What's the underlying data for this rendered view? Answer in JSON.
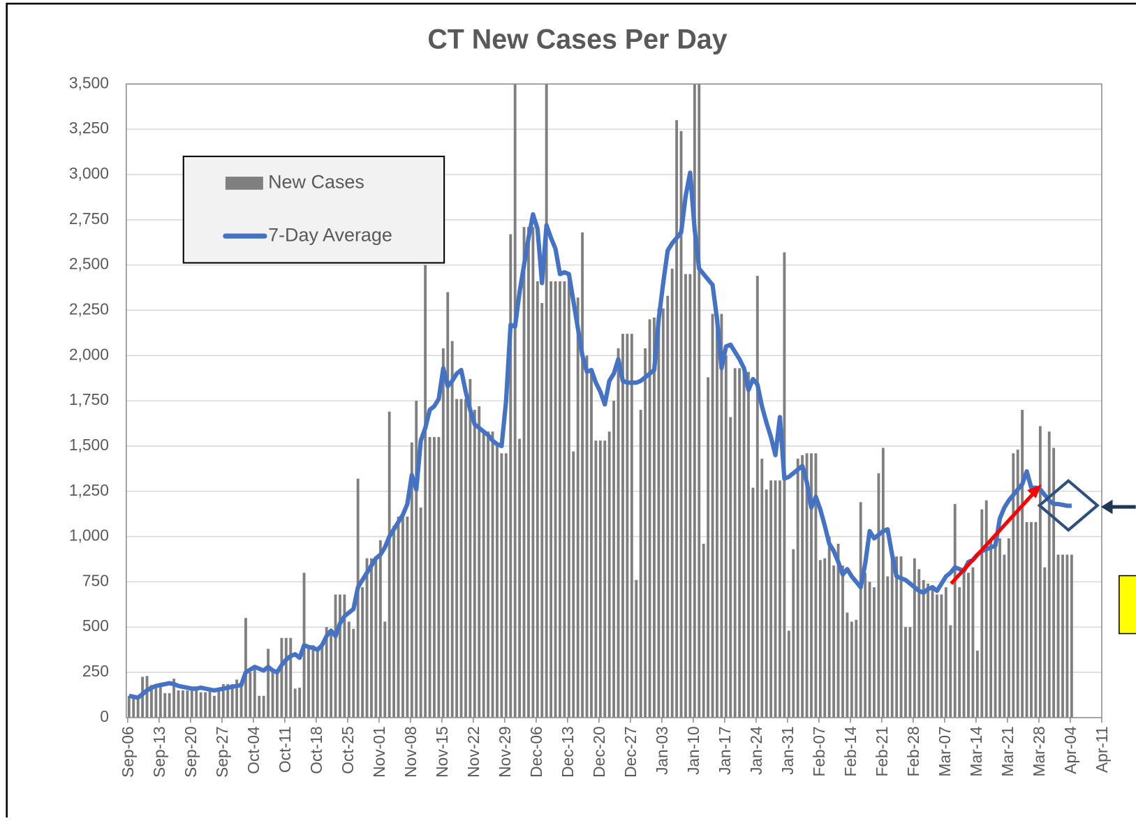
{
  "chart_data": {
    "type": "bar_line",
    "title": "CT New Cases Per Day",
    "categories": [
      "Sep-06",
      null,
      null,
      null,
      null,
      null,
      null,
      "Sep-13",
      null,
      null,
      null,
      null,
      null,
      null,
      "Sep-20",
      null,
      null,
      null,
      null,
      null,
      null,
      "Sep-27",
      null,
      null,
      null,
      null,
      null,
      null,
      "Oct-04",
      null,
      null,
      null,
      null,
      null,
      null,
      "Oct-11",
      null,
      null,
      null,
      null,
      null,
      null,
      "Oct-18",
      null,
      null,
      null,
      null,
      null,
      null,
      "Oct-25",
      null,
      null,
      null,
      null,
      null,
      null,
      "Nov-01",
      null,
      null,
      null,
      null,
      null,
      null,
      "Nov-08",
      null,
      null,
      null,
      null,
      null,
      null,
      "Nov-15",
      null,
      null,
      null,
      null,
      null,
      null,
      "Nov-22",
      null,
      null,
      null,
      null,
      null,
      null,
      "Nov-29",
      null,
      null,
      null,
      null,
      null,
      null,
      "Dec-06",
      null,
      null,
      null,
      null,
      null,
      null,
      "Dec-13",
      null,
      null,
      null,
      null,
      null,
      null,
      "Dec-20",
      null,
      null,
      null,
      null,
      null,
      null,
      "Dec-27",
      null,
      null,
      null,
      null,
      null,
      null,
      "Jan-03",
      null,
      null,
      null,
      null,
      null,
      null,
      "Jan-10",
      null,
      null,
      null,
      null,
      null,
      null,
      "Jan-17",
      null,
      null,
      null,
      null,
      null,
      null,
      "Jan-24",
      null,
      null,
      null,
      null,
      null,
      null,
      "Jan-31",
      null,
      null,
      null,
      null,
      null,
      null,
      "Feb-07",
      null,
      null,
      null,
      null,
      null,
      null,
      "Feb-14",
      null,
      null,
      null,
      null,
      null,
      null,
      "Feb-21",
      null,
      null,
      null,
      null,
      null,
      null,
      "Feb-28",
      null,
      null,
      null,
      null,
      null,
      null,
      "Mar-07",
      null,
      null,
      null,
      null,
      null,
      null,
      "Mar-14",
      null,
      null,
      null,
      null,
      null,
      null,
      "Mar-21",
      null,
      null,
      null,
      null,
      null,
      null,
      "Mar-28",
      null,
      null,
      null,
      null,
      null,
      null,
      "Apr-04",
      null,
      null,
      null,
      null,
      null,
      null,
      "Apr-11"
    ],
    "series": [
      {
        "name": "New Cases",
        "type": "bar",
        "color": "#7f7f7f",
        "values": [
          120,
          110,
          100,
          225,
          230,
          180,
          180,
          180,
          135,
          135,
          215,
          150,
          150,
          150,
          150,
          150,
          140,
          140,
          150,
          120,
          150,
          185,
          185,
          185,
          210,
          170,
          550,
          250,
          270,
          120,
          120,
          380,
          260,
          260,
          440,
          440,
          440,
          160,
          165,
          800,
          400,
          400,
          380,
          410,
          500,
          460,
          680,
          680,
          680,
          530,
          490,
          1320,
          720,
          880,
          880,
          880,
          980,
          530,
          1690,
          1060,
          1110,
          1110,
          1110,
          1520,
          1750,
          1160,
          2500,
          1550,
          1550,
          1550,
          2040,
          2350,
          2080,
          1760,
          1760,
          1760,
          1870,
          1700,
          1720,
          1580,
          1580,
          1580,
          1500,
          1460,
          1460,
          2670,
          3500,
          1540,
          2710,
          2710,
          2710,
          2410,
          2290,
          3500,
          2410,
          2410,
          2410,
          2410,
          2410,
          1470,
          2320,
          2680,
          2000,
          1900,
          1530,
          1530,
          1530,
          1580,
          1750,
          2040,
          2120,
          2120,
          2120,
          760,
          1700,
          2040,
          2200,
          2210,
          2260,
          2260,
          2330,
          2480,
          3300,
          3240,
          2450,
          2450,
          3500,
          3500,
          960,
          1880,
          2230,
          2230,
          2230,
          2000,
          1660,
          1930,
          1930,
          1940,
          1910,
          1270,
          2440,
          1430,
          1260,
          1310,
          1310,
          1310,
          2570,
          480,
          930,
          1430,
          1450,
          1460,
          1460,
          1460,
          870,
          880,
          1000,
          840,
          960,
          840,
          580,
          530,
          540,
          1190,
          800,
          750,
          720,
          1350,
          1490,
          780,
          890,
          890,
          890,
          500,
          500,
          880,
          820,
          760,
          740,
          730,
          680,
          680,
          720,
          510,
          1180,
          720,
          830,
          800,
          830,
          370,
          1150,
          1200,
          990,
          990,
          990,
          900,
          990,
          1460,
          1480,
          1700,
          1080,
          1080,
          1080,
          1610,
          830,
          1580,
          1490,
          900,
          900,
          900,
          900,
          null,
          null,
          null,
          null,
          null,
          null,
          null
        ]
      },
      {
        "name": "7-Day Average",
        "type": "line",
        "color": "#4472c4",
        "values": [
          120,
          115,
          110,
          130,
          150,
          165,
          175,
          180,
          185,
          190,
          185,
          175,
          170,
          165,
          160,
          160,
          165,
          160,
          155,
          150,
          155,
          160,
          165,
          170,
          175,
          180,
          250,
          265,
          280,
          270,
          260,
          280,
          260,
          250,
          290,
          320,
          340,
          350,
          330,
          400,
          390,
          385,
          375,
          400,
          450,
          480,
          450,
          520,
          560,
          580,
          600,
          720,
          760,
          800,
          840,
          880,
          900,
          940,
          1000,
          1040,
          1080,
          1120,
          1180,
          1340,
          1260,
          1530,
          1600,
          1700,
          1720,
          1760,
          1930,
          1830,
          1860,
          1900,
          1920,
          1800,
          1700,
          1620,
          1600,
          1580,
          1560,
          1530,
          1510,
          1500,
          1750,
          2170,
          2160,
          2350,
          2500,
          2650,
          2780,
          2700,
          2400,
          2720,
          2650,
          2590,
          2450,
          2460,
          2450,
          2300,
          2150,
          2000,
          1910,
          1920,
          1850,
          1800,
          1730,
          1860,
          1900,
          1980,
          1860,
          1850,
          1850,
          1850,
          1860,
          1880,
          1900,
          1920,
          2200,
          2400,
          2580,
          2620,
          2650,
          2680,
          2880,
          3010,
          2700,
          2480,
          2450,
          2420,
          2390,
          2200,
          1930,
          2050,
          2060,
          2020,
          1980,
          1930,
          1810,
          1870,
          1840,
          1720,
          1630,
          1550,
          1450,
          1660,
          1320,
          1330,
          1350,
          1370,
          1390,
          1300,
          1160,
          1220,
          1150,
          1060,
          960,
          920,
          860,
          790,
          820,
          780,
          750,
          720,
          850,
          1030,
          990,
          1010,
          1030,
          1040,
          900,
          780,
          770,
          760,
          740,
          720,
          700,
          690,
          710,
          720,
          700,
          740,
          780,
          800,
          830,
          820,
          810,
          860,
          870,
          900,
          920,
          930,
          940,
          950,
          1100,
          1160,
          1200,
          1230,
          1260,
          1290,
          1360,
          1270,
          1270,
          1260,
          1230,
          1200,
          1180,
          1180,
          1175,
          1170,
          1170,
          null,
          null,
          null,
          null,
          null,
          null,
          null
        ]
      }
    ],
    "ylim": [
      0,
      3500
    ],
    "yticks": [
      0,
      250,
      500,
      750,
      {
        "value": 1000,
        "label": "1,000"
      },
      {
        "value": 1250,
        "label": "1,250"
      },
      {
        "value": 1500,
        "label": "1,500"
      },
      {
        "value": 1750,
        "label": "1,750"
      },
      {
        "value": 2000,
        "label": "2,000"
      },
      {
        "value": 2250,
        "label": "2,250"
      },
      {
        "value": 2500,
        "label": "2,500"
      },
      {
        "value": 2750,
        "label": "2,750"
      },
      {
        "value": 3000,
        "label": "3,000"
      },
      {
        "value": 3250,
        "label": "3,250"
      },
      {
        "value": 3500,
        "label": "3,500"
      }
    ],
    "grid": true,
    "legend": "upper left"
  }
}
